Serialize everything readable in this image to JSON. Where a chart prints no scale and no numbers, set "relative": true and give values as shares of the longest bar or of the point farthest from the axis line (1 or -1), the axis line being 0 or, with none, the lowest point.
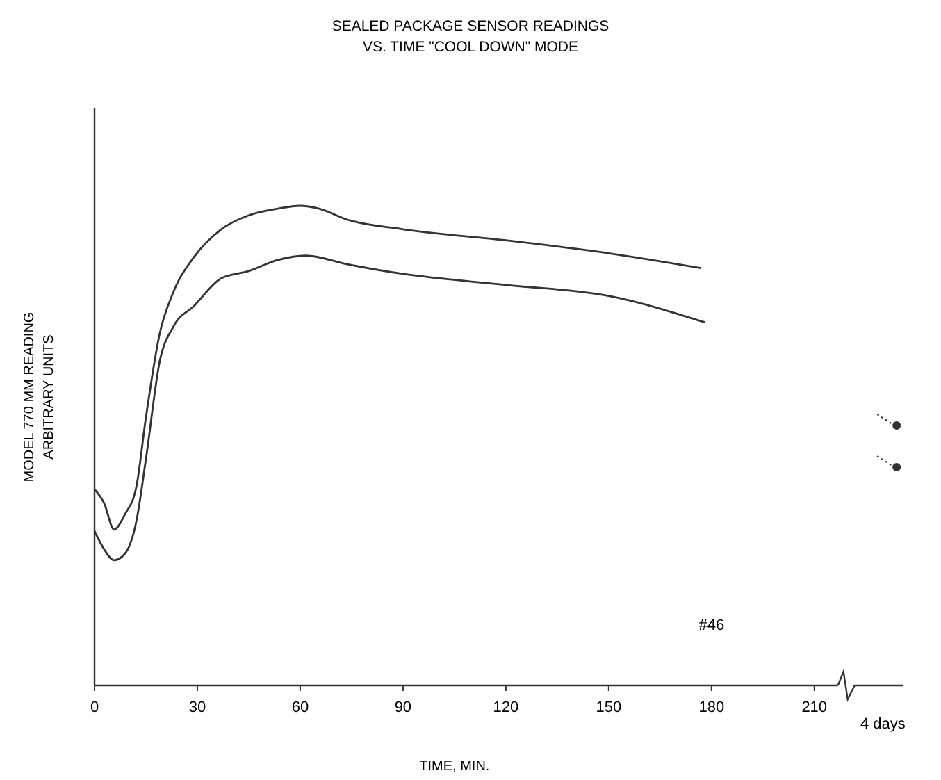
{
  "chart_data": {
    "type": "line",
    "title": "SEALED PACKAGE SENSOR READINGS",
    "subtitle": "VS. TIME \"COOL DOWN\" MODE",
    "xlabel": "TIME, MIN.",
    "ylabel": "MODEL 770 MM READING\nARBITRARY UNITS",
    "relative": true,
    "xlim": [
      0,
      236
    ],
    "xticks": [
      0,
      30,
      60,
      90,
      120,
      150,
      180,
      210
    ],
    "grid": false,
    "annotations": [
      "#46",
      "4 days"
    ],
    "series": [
      {
        "color": "#333333",
        "x": [
          0,
          2.8,
          5.7,
          8.9,
          12.2,
          15,
          19,
          23,
          29,
          37,
          45,
          53.5,
          60,
          65.5,
          73.8,
          90,
          120,
          150,
          177
        ],
        "values": [
          0.409,
          0.38,
          0.325,
          0.357,
          0.414,
          0.559,
          0.733,
          0.82,
          0.893,
          0.951,
          0.98,
          0.994,
          1,
          0.994,
          0.971,
          0.951,
          0.928,
          0.901,
          0.87
        ]
      },
      {
        "color": "#333333",
        "x": [
          0,
          2.8,
          5.7,
          8.9,
          12.2,
          15,
          19,
          23,
          29,
          37,
          45,
          53.5,
          61.6,
          73.8,
          90,
          120,
          150,
          178
        ],
        "values": [
          0.322,
          0.284,
          0.261,
          0.275,
          0.342,
          0.472,
          0.675,
          0.748,
          0.791,
          0.849,
          0.864,
          0.887,
          0.896,
          0.878,
          0.858,
          0.835,
          0.812,
          0.757
        ]
      },
      {
        "type": "scatter",
        "marker": "circle",
        "color": "#333333",
        "x": [
          234,
          234
        ],
        "values": [
          0.542,
          0.455
        ]
      }
    ]
  }
}
